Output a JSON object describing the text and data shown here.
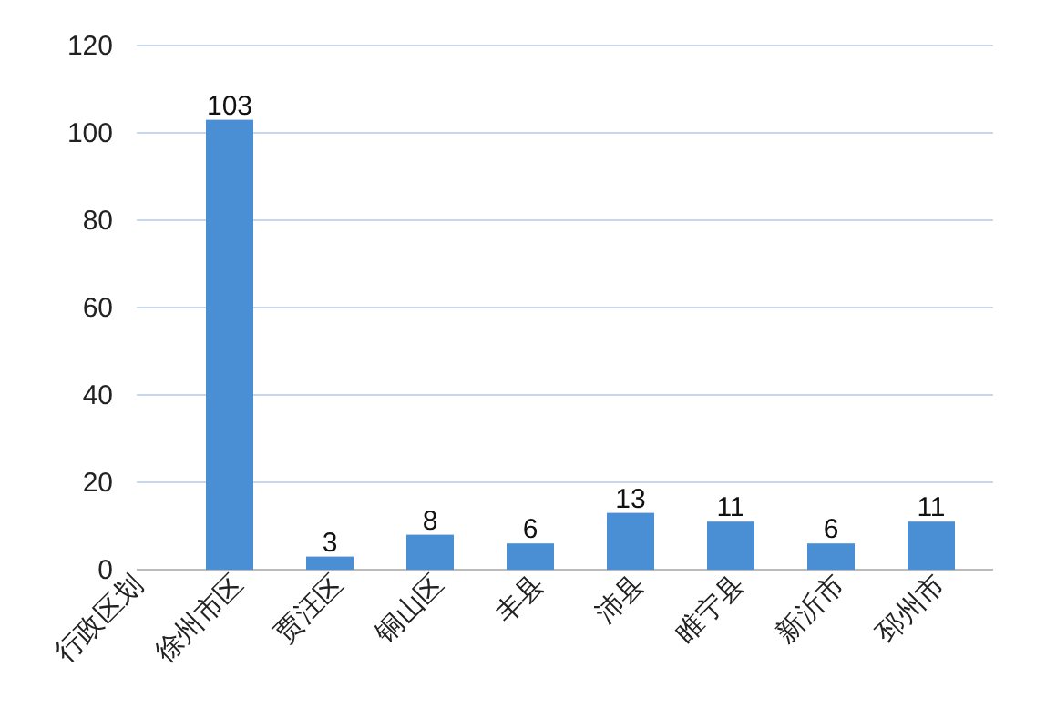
{
  "chart_data": {
    "type": "bar",
    "categories": [
      "行政区划",
      "徐州市区",
      "贾汪区",
      "铜山区",
      "丰县",
      "沛县",
      "睢宁县",
      "新沂市",
      "邳州市"
    ],
    "values": [
      null,
      103,
      3,
      8,
      6,
      13,
      11,
      6,
      11
    ],
    "color": "#4a8fd3",
    "ylim": [
      0,
      120
    ],
    "yticks": [
      0,
      20,
      40,
      60,
      80,
      100,
      120
    ],
    "grid": "y",
    "data_labels": true
  }
}
